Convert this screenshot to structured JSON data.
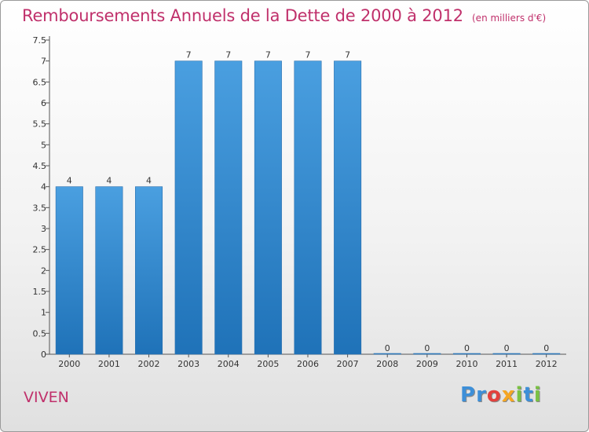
{
  "chart_data": {
    "type": "bar",
    "title": "Remboursements Annuels de la Dette de 2000 à 2012",
    "subtitle": "(en milliers d'€)",
    "categories": [
      "2000",
      "2001",
      "2002",
      "2003",
      "2004",
      "2005",
      "2006",
      "2007",
      "2008",
      "2009",
      "2010",
      "2011",
      "2012"
    ],
    "values": [
      4,
      4,
      4,
      7,
      7,
      7,
      7,
      7,
      0,
      0,
      0,
      0,
      0
    ],
    "data_labels": [
      "4",
      "4",
      "4",
      "7",
      "7",
      "7",
      "7",
      "7",
      "0",
      "0",
      "0",
      "0",
      "0"
    ],
    "ylim": [
      0,
      7.5
    ],
    "yticks": [
      0,
      0.5,
      1,
      1.5,
      2,
      2.5,
      3,
      3.5,
      4,
      4.5,
      5,
      5.5,
      6,
      6.5,
      7,
      7.5
    ],
    "ytick_labels": [
      "0",
      "0.5",
      "1",
      "1.5",
      "2",
      "2.5",
      "3",
      "3.5",
      "4",
      "4.5",
      "5",
      "5.5",
      "6",
      "6.5",
      "7",
      "7.5"
    ],
    "grid": false,
    "bar_color": "#4a9fe0",
    "bar_color_dark": "#1f72b8"
  },
  "commune": "VIVEN",
  "logo": {
    "letters": [
      "P",
      "r",
      "o",
      "x",
      "i",
      "t",
      "i"
    ],
    "colors": [
      "#3d8fd8",
      "#3d8fd8",
      "#e3413d",
      "#f5a623",
      "#7ac143",
      "#3d8fd8",
      "#7ac143"
    ]
  },
  "colors": {
    "title": "#c0306b",
    "axis": "#555555"
  }
}
